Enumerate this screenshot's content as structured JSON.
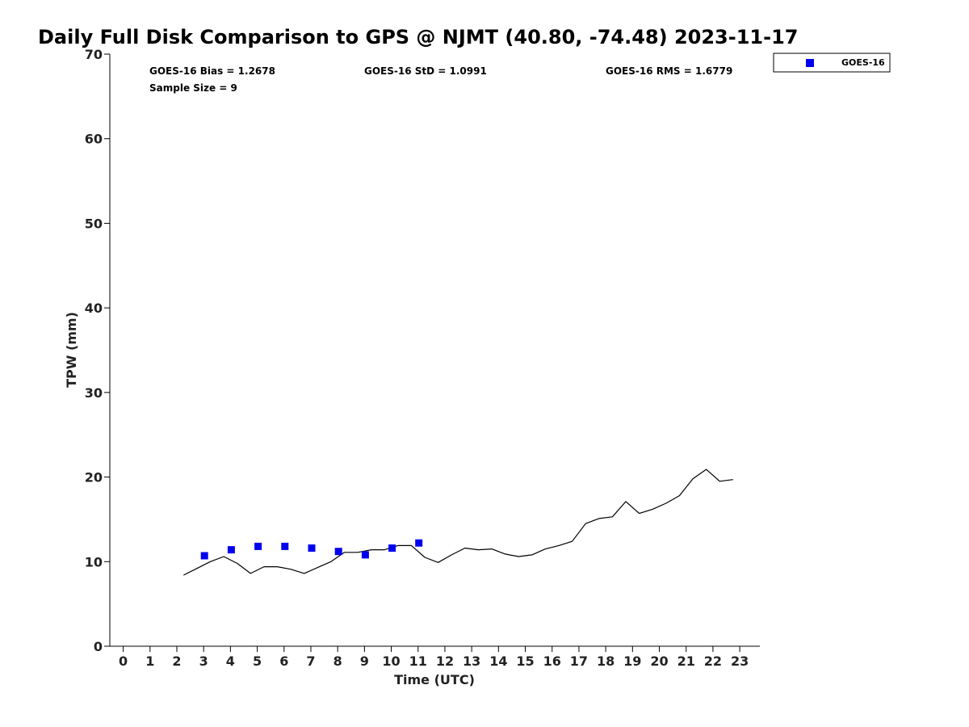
{
  "chart_data": {
    "type": "scatter",
    "title": "Daily Full Disk Comparison to GPS @ NJMT (40.80, -74.48) 2023-11-17",
    "xlabel": "Time (UTC)",
    "ylabel": "TPW (mm)",
    "xlim": [
      -0.5,
      23.75
    ],
    "ylim": [
      0,
      70
    ],
    "x_ticks": [
      0,
      1,
      2,
      3,
      4,
      5,
      6,
      7,
      8,
      9,
      10,
      11,
      12,
      13,
      14,
      15,
      16,
      17,
      18,
      19,
      20,
      21,
      22,
      23
    ],
    "x_tick_labels": [
      "0",
      "1",
      "2",
      "3",
      "4",
      "5",
      "6",
      "7",
      "8",
      "9",
      "10",
      "11",
      "12",
      "13",
      "14",
      "15",
      "16",
      "17",
      "18",
      "19",
      "20",
      "21",
      "22",
      "23"
    ],
    "y_ticks": [
      0,
      10,
      20,
      30,
      40,
      50,
      60,
      70
    ],
    "y_tick_labels": [
      "0",
      "10",
      "20",
      "30",
      "40",
      "50",
      "60",
      "70"
    ],
    "grid": false,
    "legend_position": "top-right, outside plot",
    "stats": {
      "bias": "GOES-16 Bias = 1.2678",
      "std": "GOES-16 StD = 1.0991",
      "rms": "GOES-16 RMS = 1.6779",
      "sample": "Sample Size = 9"
    },
    "series": [
      {
        "kind": "line",
        "color": "#000000",
        "x": [
          2.25,
          2.75,
          3.25,
          3.75,
          4.25,
          4.75,
          5.25,
          5.75,
          6.25,
          6.75,
          7.25,
          7.75,
          8.25,
          8.75,
          9.25,
          9.75,
          10.25,
          10.75,
          11.25,
          11.75,
          12.25,
          12.75,
          13.25,
          13.75,
          14.25,
          14.75,
          15.25,
          15.75,
          16.25,
          16.75,
          17.25,
          17.75,
          18.25,
          18.75,
          19.25,
          19.75,
          20.25,
          20.75,
          21.25,
          21.75,
          22.25,
          22.75
        ],
        "values": [
          8.4,
          9.2,
          10.0,
          10.6,
          9.8,
          8.6,
          9.4,
          9.4,
          9.1,
          8.6,
          9.3,
          10.0,
          11.1,
          11.1,
          11.4,
          11.4,
          11.9,
          11.9,
          10.5,
          9.9,
          10.8,
          11.6,
          11.4,
          11.5,
          10.9,
          10.6,
          10.8,
          11.5,
          11.9,
          12.4,
          14.5,
          15.1,
          15.3,
          17.1,
          15.7,
          16.2,
          16.9,
          17.8,
          19.8,
          20.9,
          19.5,
          19.7
        ]
      },
      {
        "name": "GOES-16",
        "kind": "scatter",
        "color": "#0000ee",
        "x": [
          3.03,
          4.03,
          5.03,
          6.03,
          7.03,
          8.03,
          9.03,
          10.03,
          11.03
        ],
        "values": [
          10.7,
          11.4,
          11.8,
          11.8,
          11.6,
          11.2,
          10.8,
          11.6,
          12.2
        ]
      }
    ]
  }
}
